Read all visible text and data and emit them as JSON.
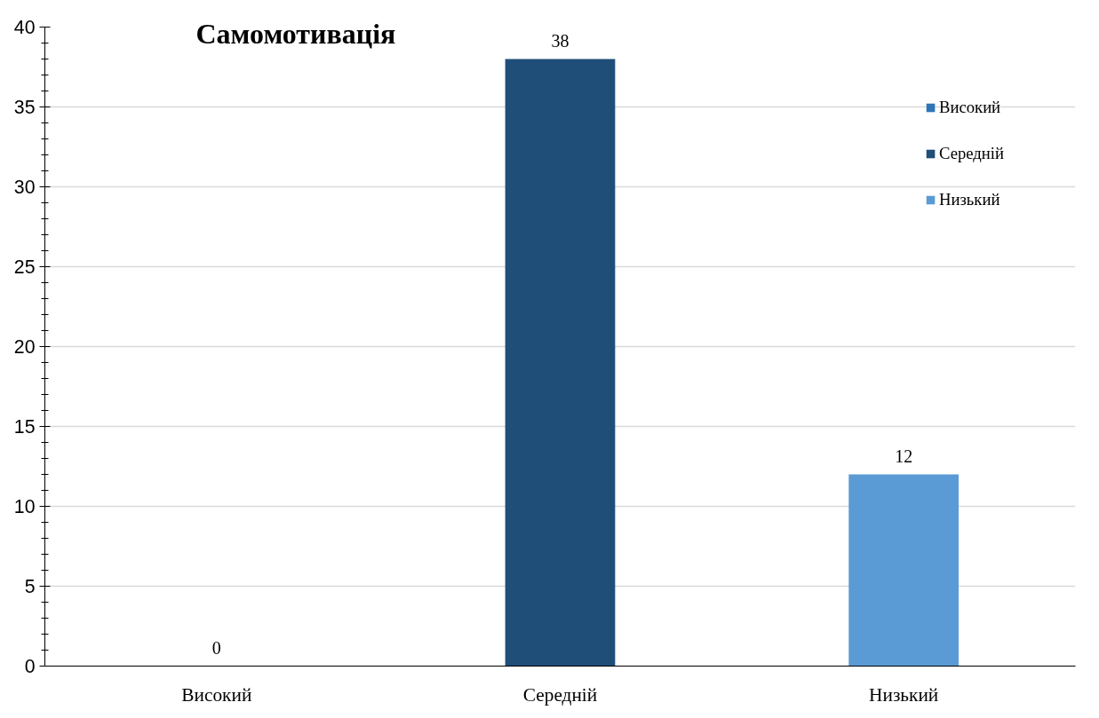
{
  "chart_data": {
    "type": "bar",
    "title": "Самомотивація",
    "categories": [
      "Високий",
      "Середній",
      "Низький"
    ],
    "series": [
      {
        "name": "Високий",
        "color": "#2e75b6",
        "values": [
          0,
          null,
          null
        ]
      },
      {
        "name": "Середній",
        "color": "#1f4e79",
        "values": [
          null,
          38,
          null
        ]
      },
      {
        "name": "Низький",
        "color": "#5b9bd5",
        "values": [
          null,
          null,
          12
        ]
      }
    ],
    "ylim": [
      0,
      40
    ],
    "yticks": [
      0,
      5,
      10,
      15,
      20,
      25,
      30,
      35,
      40
    ],
    "grid": "y",
    "legend": "top right",
    "data_labels": true
  }
}
